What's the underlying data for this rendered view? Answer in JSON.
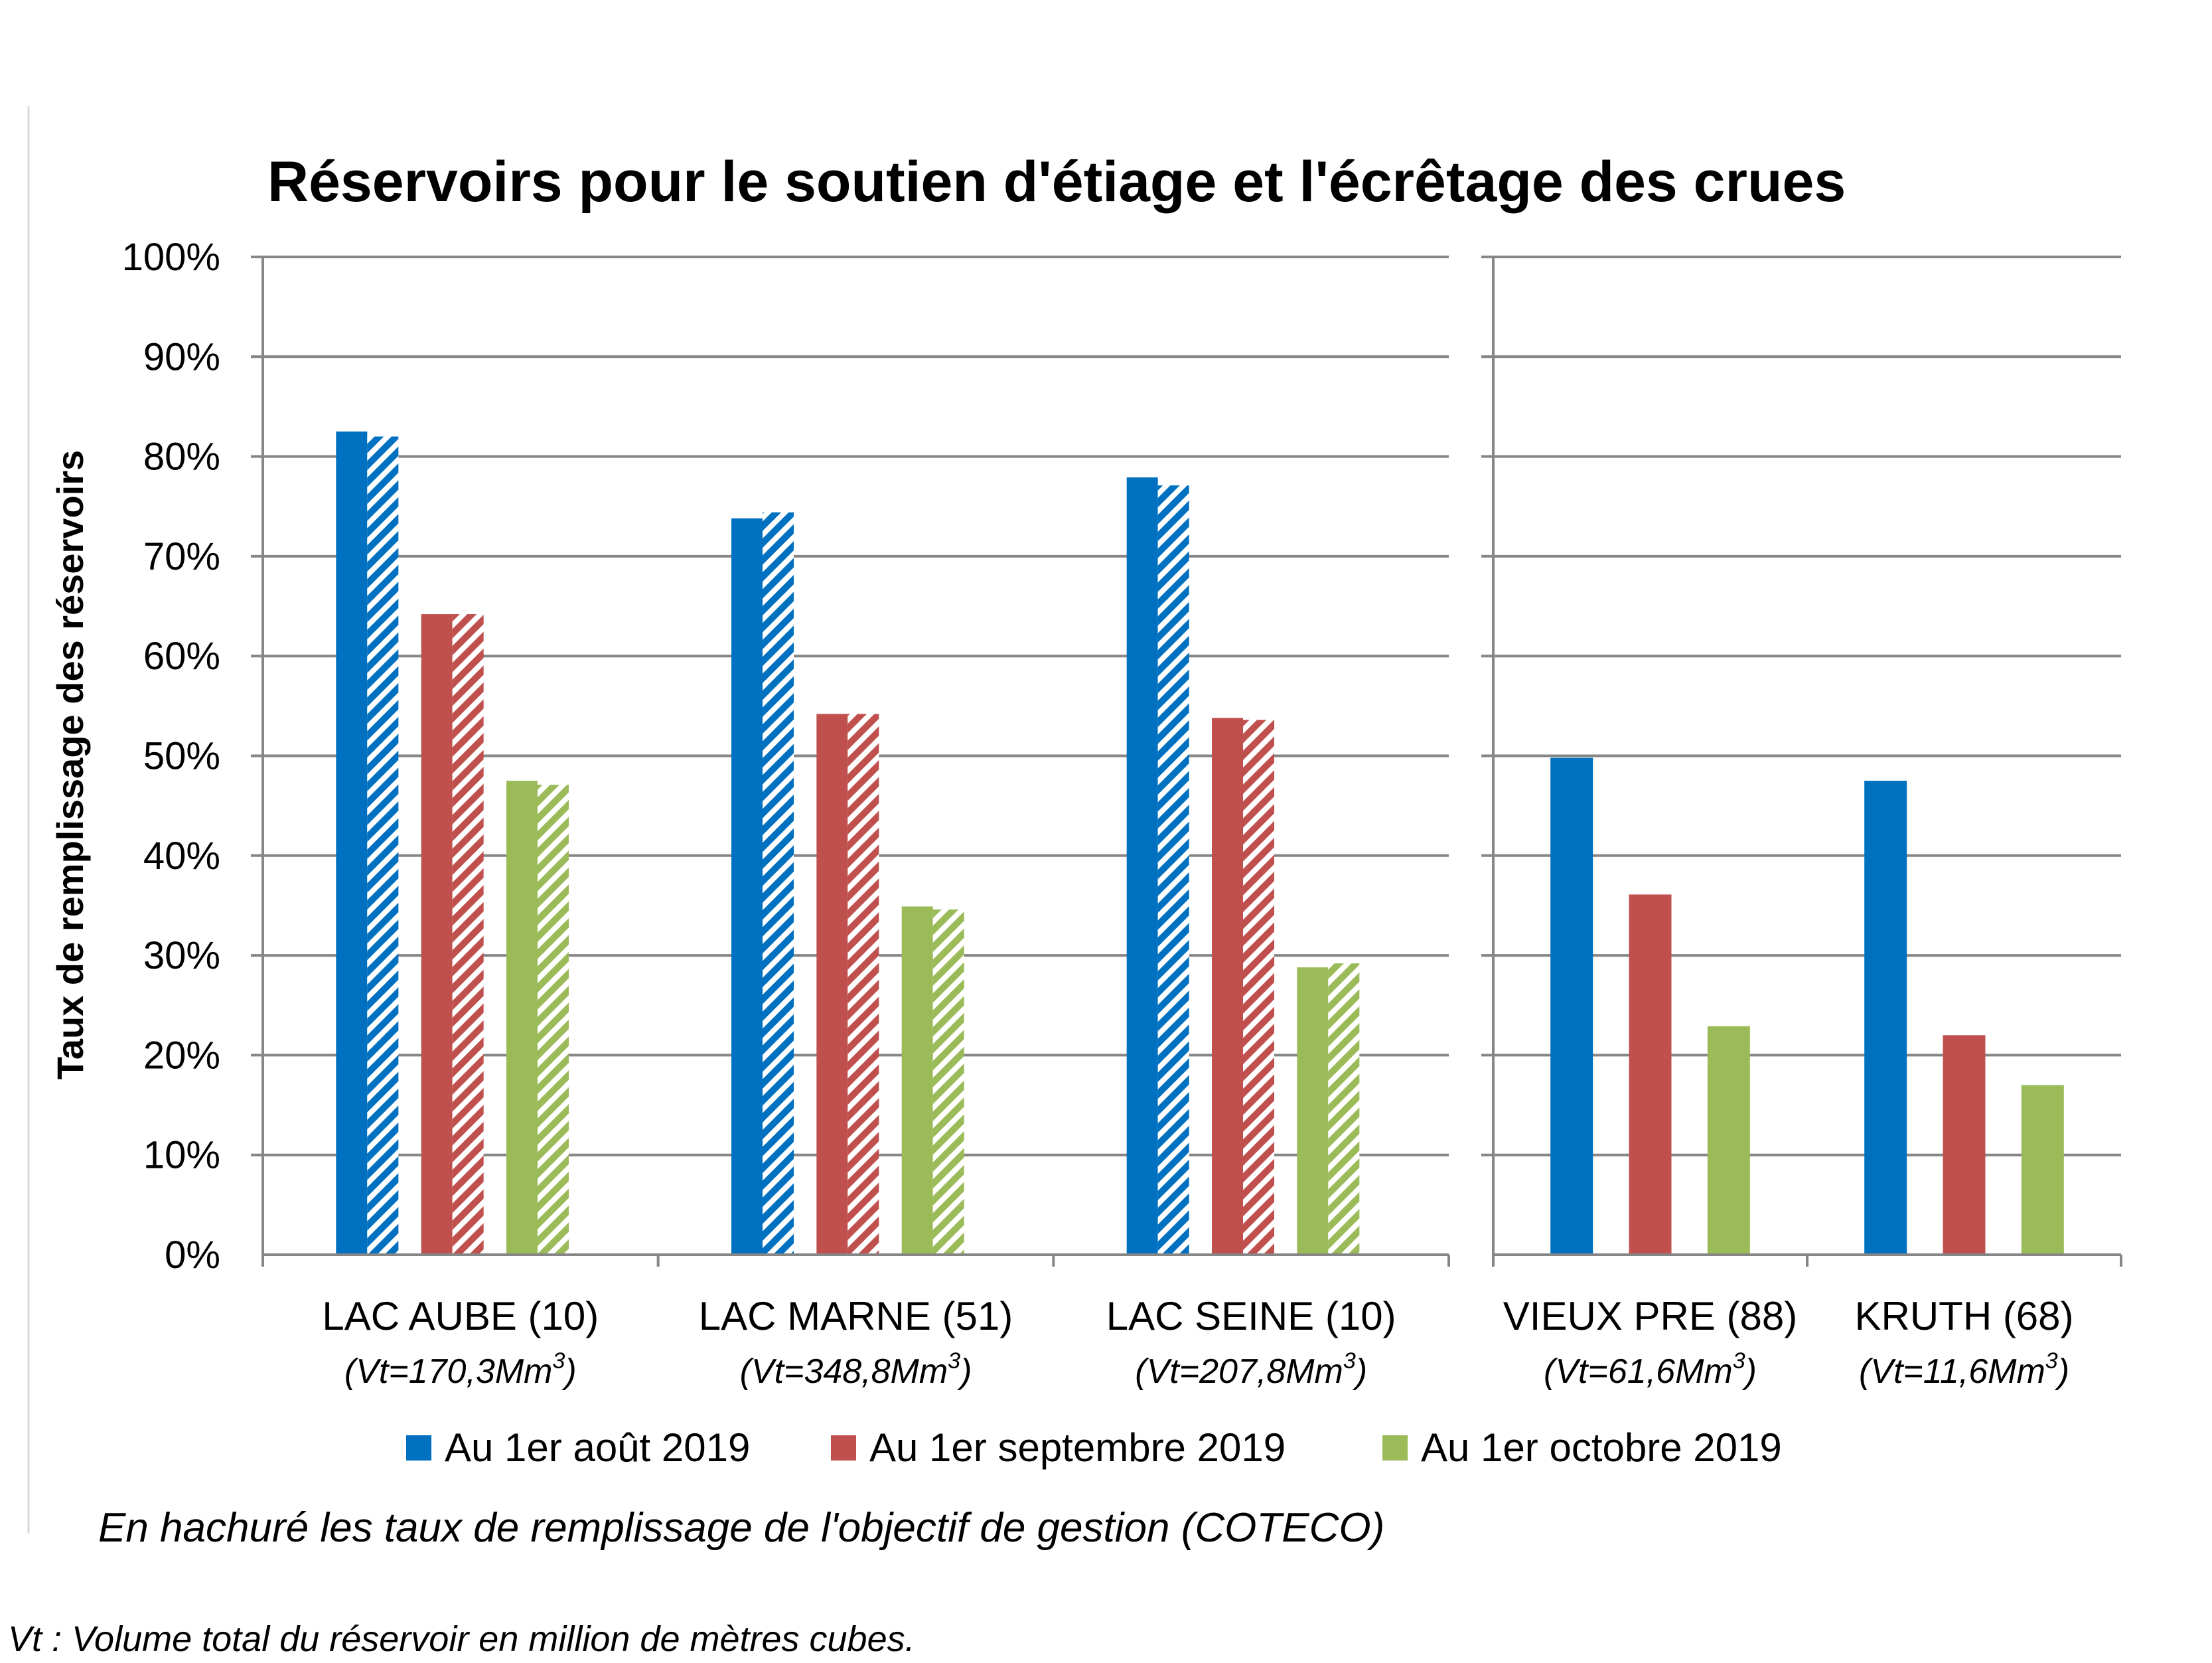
{
  "chart_data": {
    "type": "bar",
    "title": "Réservoirs pour le soutien d'étiage et l'écrêtage des crues",
    "ylabel": "Taux de remplissage des réservoirs",
    "ylim": [
      0,
      100
    ],
    "yticks": [
      "0%",
      "10%",
      "20%",
      "30%",
      "40%",
      "50%",
      "60%",
      "70%",
      "80%",
      "90%",
      "100%"
    ],
    "grid": true,
    "categories": [
      {
        "name": "LAC AUBE (10)",
        "volume": "(Vt=170,3Mm",
        "volume_sup": "3",
        "volume_end": ")"
      },
      {
        "name": "LAC MARNE (51)",
        "volume": "(Vt=348,8Mm",
        "volume_sup": "3",
        "volume_end": ")"
      },
      {
        "name": "LAC SEINE (10)",
        "volume": "(Vt=207,8Mm",
        "volume_sup": "3",
        "volume_end": ")"
      },
      {
        "name": "VIEUX PRE (88)",
        "volume": "(Vt=61,6Mm",
        "volume_sup": "3",
        "volume_end": ")"
      },
      {
        "name": "KRUTH (68)",
        "volume": "(Vt=11,6Mm",
        "volume_sup": "3",
        "volume_end": ")"
      }
    ],
    "series": [
      {
        "name": "Au 1er août 2019",
        "color": "#0070C0",
        "values": [
          82.5,
          73.8,
          77.9,
          49.8,
          47.5
        ],
        "objective": [
          82.0,
          74.4,
          77.1,
          null,
          null
        ]
      },
      {
        "name": "Au 1er septembre 2019",
        "color": "#C0504D",
        "values": [
          64.2,
          54.2,
          53.8,
          36.1,
          22.0
        ],
        "objective": [
          64.2,
          54.2,
          53.6,
          null,
          null
        ]
      },
      {
        "name": "Au 1er octobre 2019",
        "color": "#9BBB59",
        "values": [
          47.5,
          34.9,
          28.8,
          22.9,
          17.0
        ],
        "objective": [
          47.1,
          34.6,
          29.2,
          null,
          null
        ]
      }
    ],
    "legend_position": "bottom",
    "note": "En hachuré les taux de remplissage de l'objectif de gestion (COTECO)",
    "footnote": "Vt : Volume total du réservoir en million de mètres cubes."
  }
}
